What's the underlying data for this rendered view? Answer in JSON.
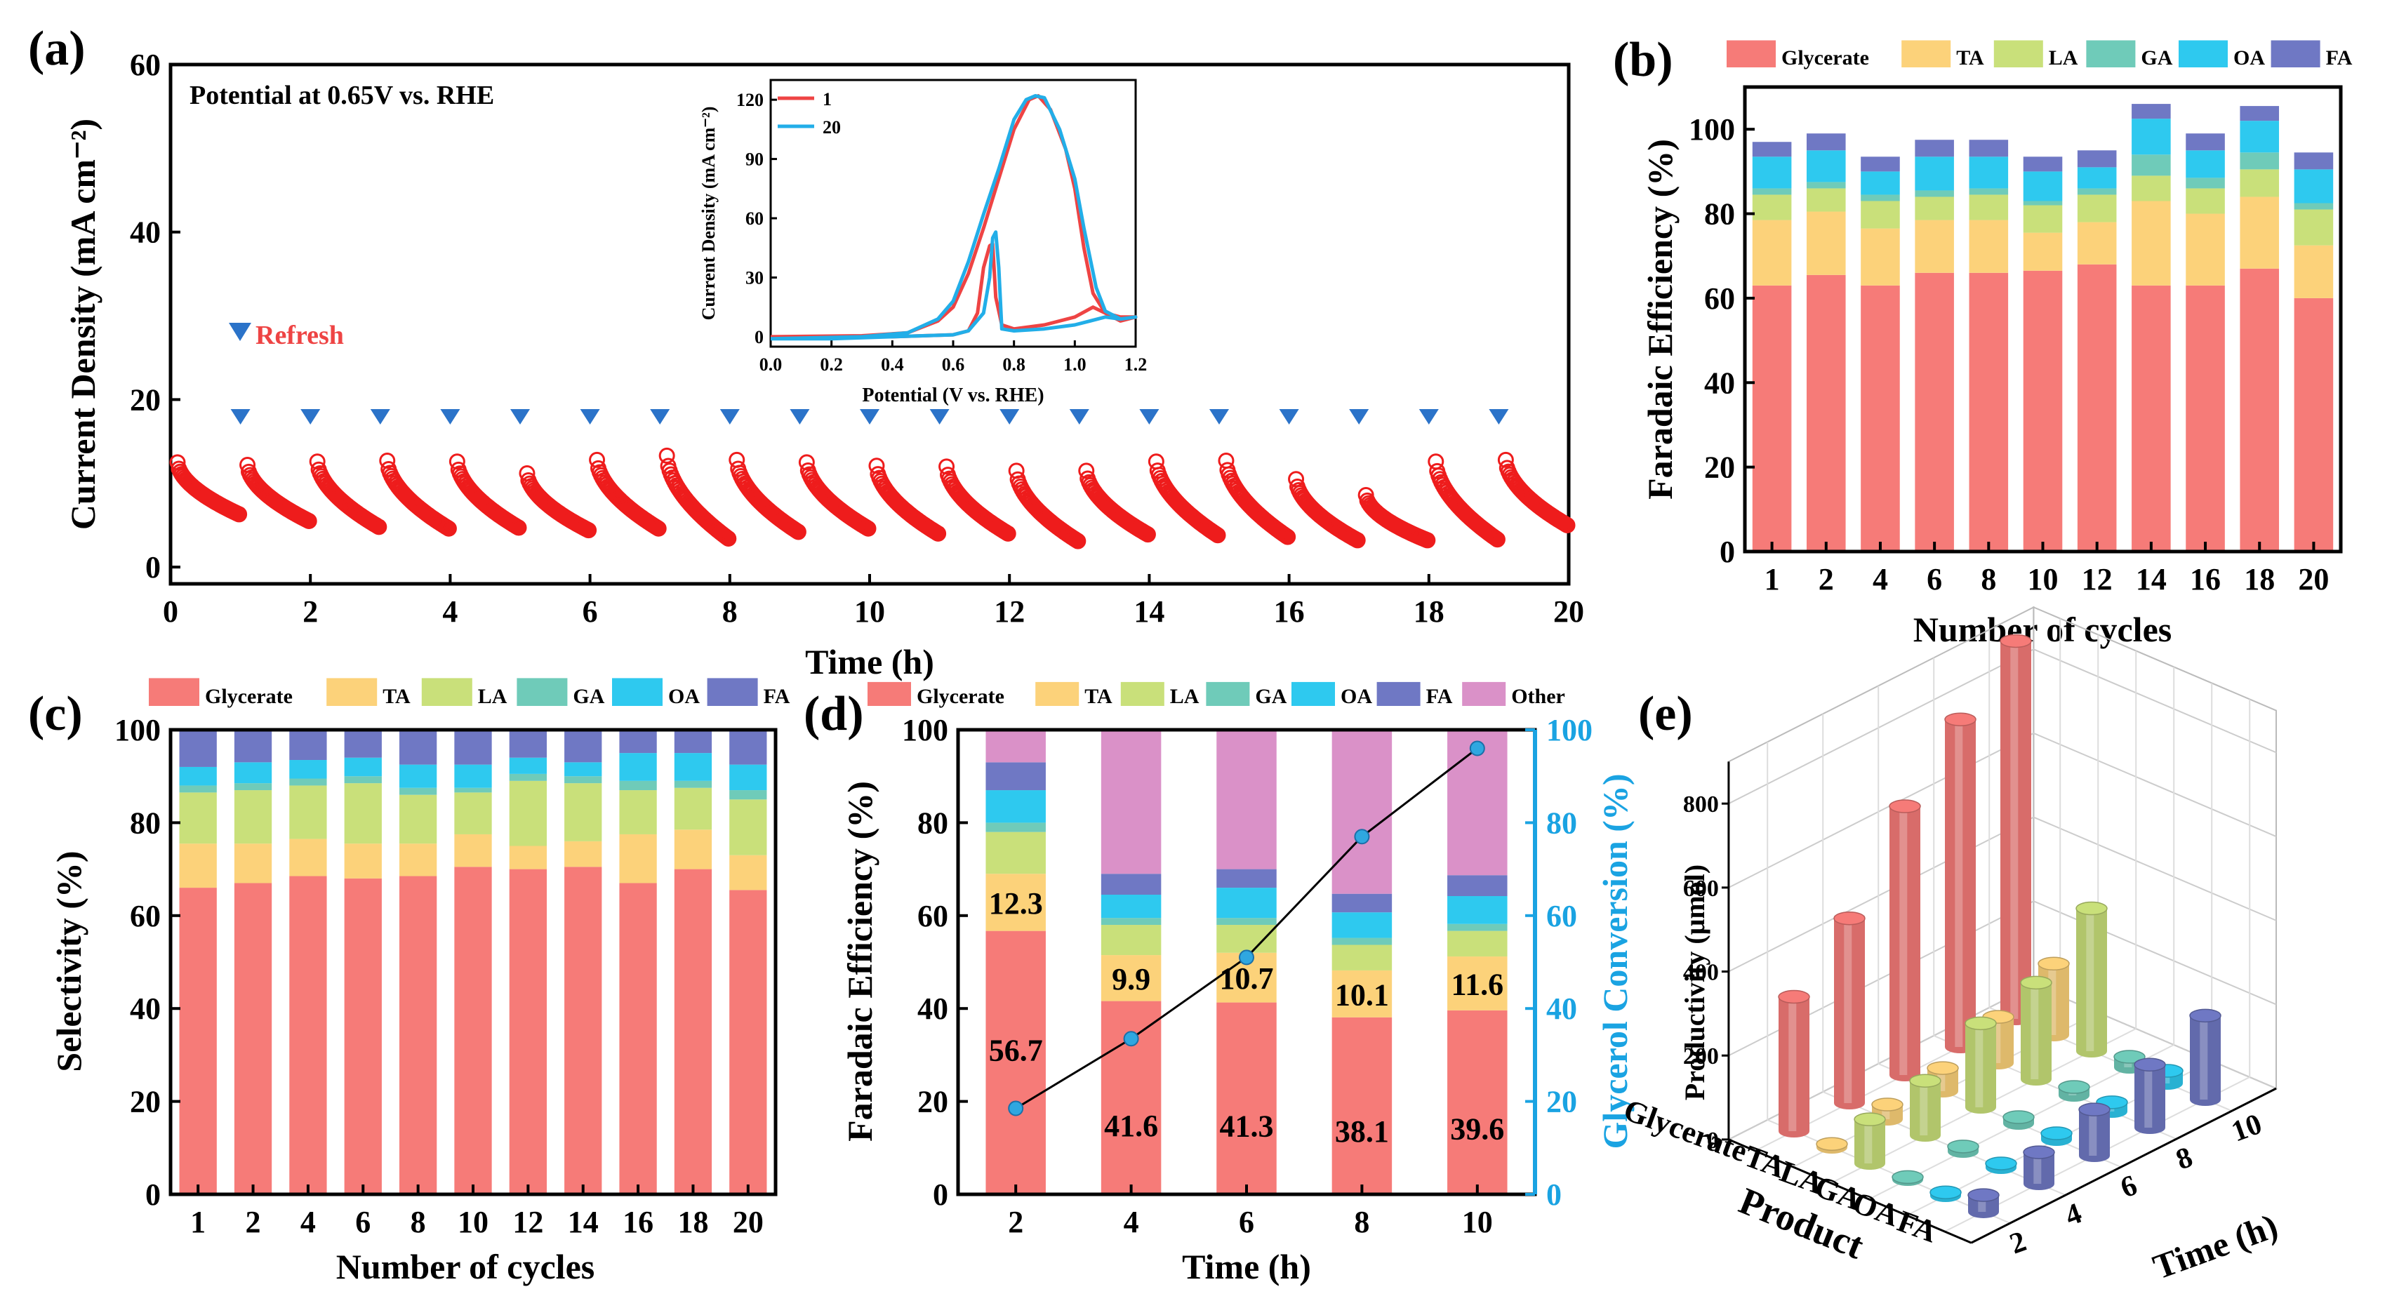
{
  "colors": {
    "glycerate": "#f67b78",
    "ta": "#fcd27a",
    "la": "#c9e07a",
    "ga": "#6fcbb9",
    "oa": "#2ec9ef",
    "fa": "#6f78c4",
    "other": "#da91c8",
    "marker_red": "#ee1c1c",
    "triangle": "#2b73c9",
    "conversion": "#2fa7e0",
    "cycle1": "#ee4444",
    "cycle20": "#22aee8",
    "axis_blue": "#1aa3e2"
  },
  "chart_data": [
    {
      "id": "a",
      "panel_label": "(a)",
      "type": "scatter",
      "title": "",
      "annotation": "Potential at 0.65V vs. RHE",
      "legend_label": "Refresh",
      "xlabel": "Time (h)",
      "ylabel": "Current Density (mA cm⁻²)",
      "xlim": [
        0,
        20
      ],
      "ylim": [
        -2,
        60
      ],
      "xticks": [
        "0",
        "2",
        "4",
        "6",
        "8",
        "10",
        "12",
        "14",
        "16",
        "18",
        "20"
      ],
      "yticks": [
        "0",
        "20",
        "40",
        "60"
      ],
      "refresh_times": [
        1,
        2,
        3,
        4,
        5,
        6,
        7,
        8,
        9,
        10,
        11,
        12,
        13,
        14,
        15,
        16,
        17,
        18,
        19
      ],
      "segments": [
        {
          "start": 0.1,
          "i0": 12.5,
          "i1": 6.3
        },
        {
          "start": 1.1,
          "i0": 12.2,
          "i1": 5.5
        },
        {
          "start": 2.1,
          "i0": 12.6,
          "i1": 4.8
        },
        {
          "start": 3.1,
          "i0": 12.7,
          "i1": 4.6
        },
        {
          "start": 4.1,
          "i0": 12.6,
          "i1": 4.7
        },
        {
          "start": 5.1,
          "i0": 11.2,
          "i1": 4.4
        },
        {
          "start": 6.1,
          "i0": 12.8,
          "i1": 4.6
        },
        {
          "start": 7.1,
          "i0": 13.3,
          "i1": 3.4
        },
        {
          "start": 8.1,
          "i0": 12.8,
          "i1": 4.2
        },
        {
          "start": 9.1,
          "i0": 12.5,
          "i1": 4.6
        },
        {
          "start": 10.1,
          "i0": 12.1,
          "i1": 4.0
        },
        {
          "start": 11.1,
          "i0": 12.0,
          "i1": 4.0
        },
        {
          "start": 12.1,
          "i0": 11.5,
          "i1": 3.1
        },
        {
          "start": 13.1,
          "i0": 11.5,
          "i1": 3.9
        },
        {
          "start": 14.1,
          "i0": 12.6,
          "i1": 3.8
        },
        {
          "start": 15.1,
          "i0": 12.7,
          "i1": 3.6
        },
        {
          "start": 16.1,
          "i0": 10.5,
          "i1": 3.2
        },
        {
          "start": 17.1,
          "i0": 8.6,
          "i1": 3.2
        },
        {
          "start": 18.1,
          "i0": 12.6,
          "i1": 3.3
        },
        {
          "start": 19.1,
          "i0": 12.8,
          "i1": 5.0
        }
      ],
      "inset": {
        "type": "line",
        "xlabel": "Potential (V vs. RHE)",
        "ylabel": "Current Density (mA cm⁻²)",
        "xlim": [
          0,
          1.2
        ],
        "ylim": [
          -5,
          130
        ],
        "xticks": [
          "0.0",
          "0.2",
          "0.4",
          "0.6",
          "0.8",
          "1.0",
          "1.2"
        ],
        "yticks": [
          "0",
          "30",
          "60",
          "90",
          "120"
        ],
        "series": [
          {
            "name": "1",
            "color_key": "cycle1",
            "forward": [
              [
                0,
                0
              ],
              [
                0.3,
                0.5
              ],
              [
                0.45,
                2
              ],
              [
                0.55,
                8
              ],
              [
                0.6,
                15
              ],
              [
                0.65,
                32
              ],
              [
                0.7,
                55
              ],
              [
                0.75,
                80
              ],
              [
                0.8,
                105
              ],
              [
                0.85,
                120
              ],
              [
                0.88,
                122
              ],
              [
                0.92,
                115
              ],
              [
                0.97,
                95
              ],
              [
                1.0,
                75
              ],
              [
                1.03,
                45
              ],
              [
                1.06,
                22
              ],
              [
                1.1,
                12
              ],
              [
                1.15,
                8
              ],
              [
                1.2,
                10
              ]
            ],
            "reverse": [
              [
                1.2,
                10
              ],
              [
                1.15,
                10
              ],
              [
                1.1,
                12
              ],
              [
                1.06,
                15
              ],
              [
                1.0,
                10
              ],
              [
                0.9,
                6
              ],
              [
                0.8,
                4
              ],
              [
                0.76,
                6
              ],
              [
                0.74,
                20
              ],
              [
                0.73,
                47
              ],
              [
                0.72,
                46
              ],
              [
                0.7,
                35
              ],
              [
                0.68,
                12
              ],
              [
                0.65,
                3
              ],
              [
                0.6,
                1
              ],
              [
                0.4,
                0
              ],
              [
                0.2,
                0
              ],
              [
                0,
                0
              ]
            ]
          },
          {
            "name": "20",
            "color_key": "cycle20",
            "forward": [
              [
                0,
                -1
              ],
              [
                0.3,
                0
              ],
              [
                0.45,
                2
              ],
              [
                0.55,
                9
              ],
              [
                0.6,
                18
              ],
              [
                0.65,
                38
              ],
              [
                0.7,
                62
              ],
              [
                0.75,
                85
              ],
              [
                0.8,
                110
              ],
              [
                0.84,
                120
              ],
              [
                0.87,
                122
              ],
              [
                0.9,
                121
              ],
              [
                0.95,
                105
              ],
              [
                1.0,
                80
              ],
              [
                1.03,
                55
              ],
              [
                1.07,
                25
              ],
              [
                1.1,
                13
              ],
              [
                1.15,
                9
              ],
              [
                1.2,
                10
              ]
            ],
            "reverse": [
              [
                1.2,
                10
              ],
              [
                1.15,
                9
              ],
              [
                1.1,
                10
              ],
              [
                1.05,
                8
              ],
              [
                1.0,
                6
              ],
              [
                0.9,
                4
              ],
              [
                0.8,
                3
              ],
              [
                0.76,
                4
              ],
              [
                0.75,
                35
              ],
              [
                0.74,
                53
              ],
              [
                0.73,
                50
              ],
              [
                0.72,
                30
              ],
              [
                0.7,
                12
              ],
              [
                0.65,
                3
              ],
              [
                0.6,
                1
              ],
              [
                0.4,
                0
              ],
              [
                0.2,
                -1
              ],
              [
                0,
                -1
              ]
            ]
          }
        ]
      }
    },
    {
      "id": "b",
      "panel_label": "(b)",
      "type": "bar",
      "stacked": true,
      "xlabel": "Number of cycles",
      "ylabel": "Faradaic Efficiency (%)",
      "ylim": [
        0,
        110
      ],
      "yticks": [
        "0",
        "20",
        "40",
        "60",
        "80",
        "100"
      ],
      "categories": [
        "1",
        "2",
        "4",
        "6",
        "8",
        "10",
        "12",
        "14",
        "16",
        "18",
        "20"
      ],
      "legend": [
        "Glycerate",
        "TA",
        "LA",
        "GA",
        "OA",
        "FA"
      ],
      "series": [
        {
          "name": "Glycerate",
          "color_key": "glycerate",
          "values": [
            63,
            65.5,
            63,
            66,
            66,
            66.5,
            68,
            63,
            63,
            67,
            60
          ]
        },
        {
          "name": "TA",
          "color_key": "ta",
          "values": [
            15.5,
            15,
            13.5,
            12.5,
            12.5,
            9,
            10,
            20,
            17,
            17,
            12.5
          ]
        },
        {
          "name": "LA",
          "color_key": "la",
          "values": [
            6,
            5.5,
            6.5,
            5.5,
            6,
            6.5,
            6.5,
            6,
            6,
            6.5,
            8.5
          ]
        },
        {
          "name": "GA",
          "color_key": "ga",
          "values": [
            1.5,
            1.5,
            1.5,
            1.5,
            1.5,
            1,
            1.5,
            5,
            2.5,
            4,
            1.5
          ]
        },
        {
          "name": "OA",
          "color_key": "oa",
          "values": [
            7.5,
            7.5,
            5.5,
            8,
            7.5,
            7,
            5,
            8.5,
            6.5,
            7.5,
            8
          ]
        },
        {
          "name": "FA",
          "color_key": "fa",
          "values": [
            3.5,
            4,
            3.5,
            4,
            4,
            3.5,
            4,
            3.5,
            4,
            3.5,
            4
          ]
        }
      ]
    },
    {
      "id": "c",
      "panel_label": "(c)",
      "type": "bar",
      "stacked": true,
      "xlabel": "Number of cycles",
      "ylabel": "Selectivity (%)",
      "ylim": [
        0,
        100
      ],
      "yticks": [
        "0",
        "20",
        "40",
        "60",
        "80",
        "100"
      ],
      "categories": [
        "1",
        "2",
        "4",
        "6",
        "8",
        "10",
        "12",
        "14",
        "16",
        "18",
        "20"
      ],
      "legend": [
        "Glycerate",
        "TA",
        "LA",
        "GA",
        "OA",
        "FA"
      ],
      "series": [
        {
          "name": "Glycerate",
          "color_key": "glycerate",
          "values": [
            66,
            67,
            68.5,
            68,
            68.5,
            70.5,
            70,
            70.5,
            67,
            70,
            65.5
          ]
        },
        {
          "name": "TA",
          "color_key": "ta",
          "values": [
            9.5,
            8.5,
            8,
            7.5,
            7,
            7,
            5,
            5.5,
            10.5,
            8.5,
            7.5
          ]
        },
        {
          "name": "LA",
          "color_key": "la",
          "values": [
            11,
            11.5,
            11.5,
            13,
            10.5,
            9,
            14,
            12.5,
            9.5,
            9,
            12
          ]
        },
        {
          "name": "GA",
          "color_key": "ga",
          "values": [
            1.5,
            1.5,
            1.5,
            1.5,
            1.5,
            1,
            1.5,
            1.5,
            2,
            1.5,
            2
          ]
        },
        {
          "name": "OA",
          "color_key": "oa",
          "values": [
            4,
            4.5,
            4,
            4,
            5,
            5,
            3.5,
            3,
            6,
            6,
            5.5
          ]
        },
        {
          "name": "FA",
          "color_key": "fa",
          "values": [
            8,
            7,
            6.5,
            6,
            7.5,
            7.5,
            6,
            7,
            5,
            5,
            7.5
          ]
        }
      ]
    },
    {
      "id": "d",
      "panel_label": "(d)",
      "type": "bar",
      "stacked": true,
      "xlabel": "Time (h)",
      "ylabel": "Faradaic Efficiency (%)",
      "y2label": "Glycerol Conversion (%)",
      "ylim": [
        0,
        100
      ],
      "y2lim": [
        0,
        100
      ],
      "yticks": [
        "0",
        "20",
        "40",
        "60",
        "80",
        "100"
      ],
      "y2ticks": [
        "0",
        "20",
        "40",
        "60",
        "80",
        "100"
      ],
      "categories": [
        "2",
        "4",
        "6",
        "8",
        "10"
      ],
      "legend": [
        "Glycerate",
        "TA",
        "LA",
        "GA",
        "OA",
        "FA",
        "Other"
      ],
      "series": [
        {
          "name": "Glycerate",
          "color_key": "glycerate",
          "values": [
            56.7,
            41.6,
            41.3,
            38.1,
            39.6
          ]
        },
        {
          "name": "TA",
          "color_key": "ta",
          "values": [
            12.3,
            9.9,
            10.7,
            10.1,
            11.6
          ]
        },
        {
          "name": "LA",
          "color_key": "la",
          "values": [
            9,
            6.5,
            6,
            5.5,
            5.5
          ]
        },
        {
          "name": "GA",
          "color_key": "ga",
          "values": [
            2,
            1.5,
            1.5,
            1.5,
            1.5
          ]
        },
        {
          "name": "OA",
          "color_key": "oa",
          "values": [
            7,
            5,
            6.5,
            5.5,
            6
          ]
        },
        {
          "name": "FA",
          "color_key": "fa",
          "values": [
            6,
            4.5,
            4,
            4,
            4.5
          ]
        },
        {
          "name": "Other",
          "color_key": "other",
          "values": [
            7,
            31,
            30,
            35.3,
            31.3
          ]
        }
      ],
      "value_labels": {
        "Glycerate": [
          "56.7",
          "41.6",
          "41.3",
          "38.1",
          "39.6"
        ],
        "TA": [
          "12.3",
          "9.9",
          "10.7",
          "10.1",
          "11.6"
        ]
      },
      "line_series": {
        "name": "Glycerol Conversion",
        "values": [
          18.5,
          33.5,
          51,
          77,
          96
        ]
      }
    },
    {
      "id": "e",
      "panel_label": "(e)",
      "type": "bar",
      "subtype": "3d-bar",
      "xlabel": "Product",
      "ylabel": "Time (h)",
      "zlabel": "Productivity (μmol)",
      "zlim": [
        0,
        900
      ],
      "zticks": [
        "0",
        "200",
        "400",
        "600",
        "800"
      ],
      "products": [
        "Glycerate",
        "TA",
        "LA",
        "GA",
        "OA",
        "FA"
      ],
      "times": [
        "2",
        "4",
        "6",
        "8",
        "10"
      ],
      "values": {
        "Glycerate": [
          320,
          440,
          640,
          780,
          900
        ],
        "TA": [
          8,
          35,
          55,
          110,
          170
        ],
        "LA": [
          105,
          130,
          200,
          230,
          340
        ],
        "GA": [
          6,
          12,
          15,
          20,
          25
        ],
        "OA": [
          8,
          10,
          15,
          22,
          30
        ],
        "FA": [
          40,
          75,
          110,
          150,
          200
        ]
      }
    }
  ]
}
